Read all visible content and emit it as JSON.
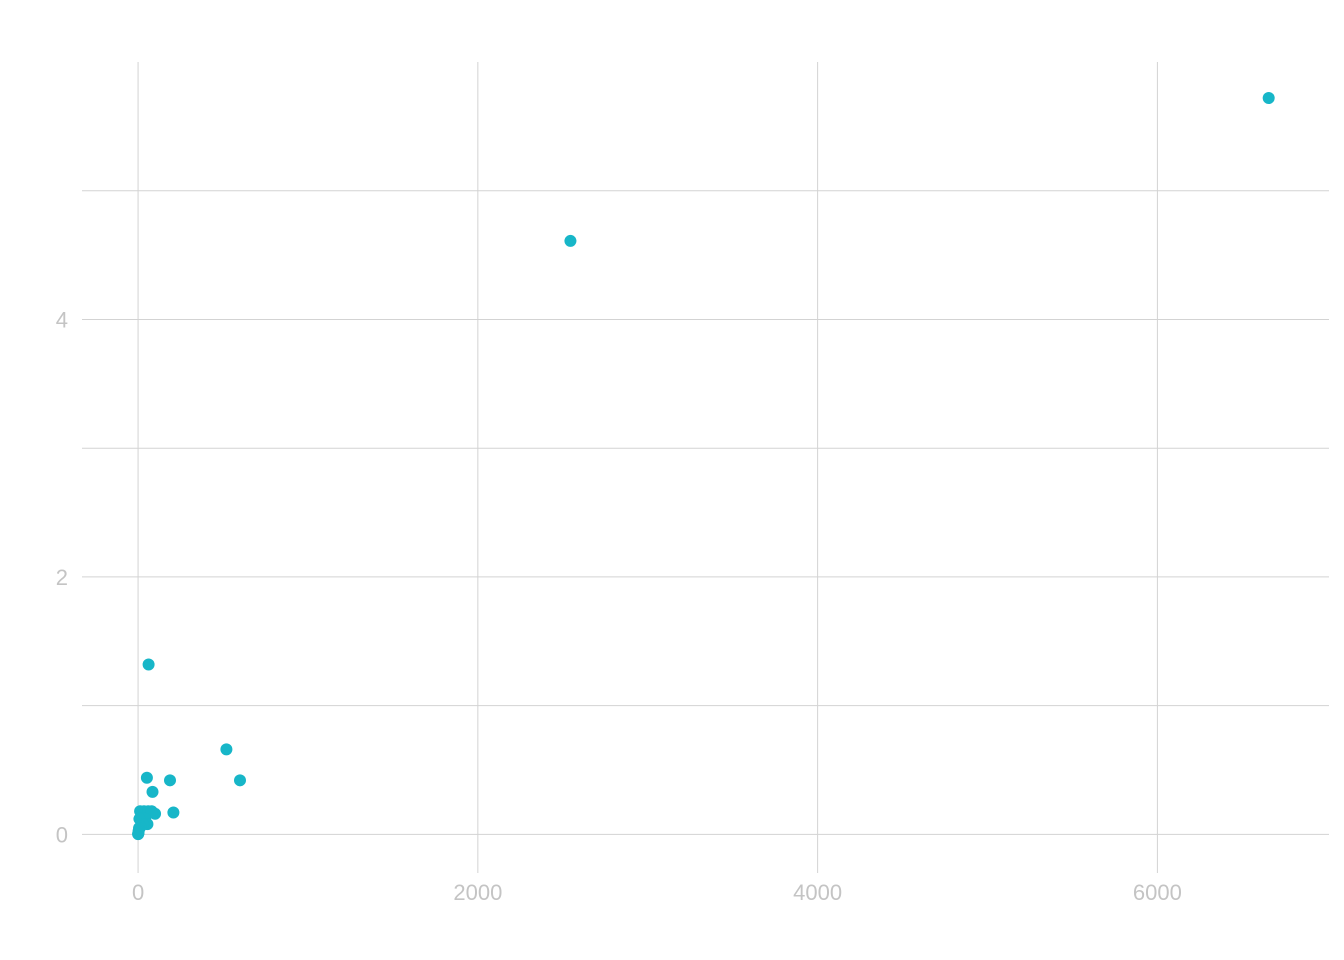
{
  "chart_data": {
    "type": "scatter",
    "title": "",
    "xlabel": "",
    "ylabel": "",
    "xlim": [
      -330,
      7010
    ],
    "ylim": [
      -0.3,
      6.0
    ],
    "x_ticks": [
      0,
      2000,
      4000,
      6000
    ],
    "x_tick_labels": [
      "0",
      "2000",
      "4000",
      "6000"
    ],
    "y_ticks": [
      0,
      2,
      4
    ],
    "y_tick_labels": [
      "0",
      "2",
      "4"
    ],
    "x_minor_gridlines": [],
    "y_minor_gridlines": [
      1,
      3,
      5
    ],
    "grid": true,
    "legend": "none",
    "point_color": "#17b6c8",
    "grid_color": "#d3d3d3",
    "tick_label_color": "#c4c4c4",
    "points": [
      {
        "x": 6655,
        "y": 5.72
      },
      {
        "x": 2545,
        "y": 4.61
      },
      {
        "x": 62,
        "y": 1.32
      },
      {
        "x": 520,
        "y": 0.66
      },
      {
        "x": 52,
        "y": 0.44
      },
      {
        "x": 188,
        "y": 0.42
      },
      {
        "x": 600,
        "y": 0.42
      },
      {
        "x": 85,
        "y": 0.33
      },
      {
        "x": 208,
        "y": 0.17
      },
      {
        "x": 100,
        "y": 0.16
      },
      {
        "x": 12,
        "y": 0.18
      },
      {
        "x": 35,
        "y": 0.18
      },
      {
        "x": 60,
        "y": 0.18
      },
      {
        "x": 80,
        "y": 0.18
      },
      {
        "x": 20,
        "y": 0.12
      },
      {
        "x": 42,
        "y": 0.12
      },
      {
        "x": 8,
        "y": 0.12
      },
      {
        "x": 55,
        "y": 0.08
      },
      {
        "x": 30,
        "y": 0.08
      },
      {
        "x": 15,
        "y": 0.06
      },
      {
        "x": 6,
        "y": 0.05
      },
      {
        "x": 4,
        "y": 0.03
      },
      {
        "x": 3,
        "y": 0.02
      },
      {
        "x": 2,
        "y": 0.01
      },
      {
        "x": 1,
        "y": 0.005
      },
      {
        "x": 0.5,
        "y": 0.002
      }
    ]
  }
}
